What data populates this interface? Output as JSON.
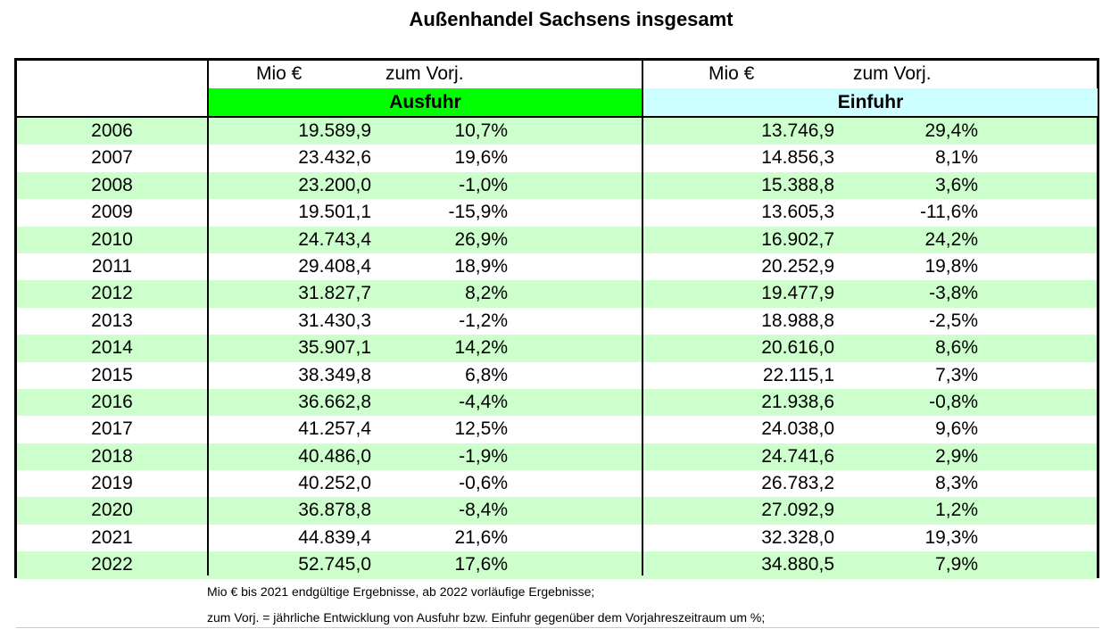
{
  "title": "Außenhandel Sachsens insgesamt",
  "header": {
    "aus_unit": "Mio €",
    "aus_change": "zum Vorj.",
    "ein_unit": "Mio €",
    "ein_change": "zum Vorj.",
    "aus_label": "Ausfuhr",
    "ein_label": "Einfuhr"
  },
  "colors": {
    "ausfuhr_band": "#00ff00",
    "einfuhr_band": "#ccffff",
    "row_shade": "#ccffcc"
  },
  "rows": [
    {
      "year": "2006",
      "aus_value": "19.589,9",
      "aus_change": "10,7%",
      "ein_value": "13.746,9",
      "ein_change": "29,4%"
    },
    {
      "year": "2007",
      "aus_value": "23.432,6",
      "aus_change": "19,6%",
      "ein_value": "14.856,3",
      "ein_change": "8,1%"
    },
    {
      "year": "2008",
      "aus_value": "23.200,0",
      "aus_change": "-1,0%",
      "ein_value": "15.388,8",
      "ein_change": "3,6%"
    },
    {
      "year": "2009",
      "aus_value": "19.501,1",
      "aus_change": "-15,9%",
      "ein_value": "13.605,3",
      "ein_change": "-11,6%"
    },
    {
      "year": "2010",
      "aus_value": "24.743,4",
      "aus_change": "26,9%",
      "ein_value": "16.902,7",
      "ein_change": "24,2%"
    },
    {
      "year": "2011",
      "aus_value": "29.408,4",
      "aus_change": "18,9%",
      "ein_value": "20.252,9",
      "ein_change": "19,8%"
    },
    {
      "year": "2012",
      "aus_value": "31.827,7",
      "aus_change": "8,2%",
      "ein_value": "19.477,9",
      "ein_change": "-3,8%"
    },
    {
      "year": "2013",
      "aus_value": "31.430,3",
      "aus_change": "-1,2%",
      "ein_value": "18.988,8",
      "ein_change": "-2,5%"
    },
    {
      "year": "2014",
      "aus_value": "35.907,1",
      "aus_change": "14,2%",
      "ein_value": "20.616,0",
      "ein_change": "8,6%"
    },
    {
      "year": "2015",
      "aus_value": "38.349,8",
      "aus_change": "6,8%",
      "ein_value": "22.115,1",
      "ein_change": "7,3%"
    },
    {
      "year": "2016",
      "aus_value": "36.662,8",
      "aus_change": "-4,4%",
      "ein_value": "21.938,6",
      "ein_change": "-0,8%"
    },
    {
      "year": "2017",
      "aus_value": "41.257,4",
      "aus_change": "12,5%",
      "ein_value": "24.038,0",
      "ein_change": "9,6%"
    },
    {
      "year": "2018",
      "aus_value": "40.486,0",
      "aus_change": "-1,9%",
      "ein_value": "24.741,6",
      "ein_change": "2,9%"
    },
    {
      "year": "2019",
      "aus_value": "40.252,0",
      "aus_change": "-0,6%",
      "ein_value": "26.783,2",
      "ein_change": "8,3%"
    },
    {
      "year": "2020",
      "aus_value": "36.878,8",
      "aus_change": "-8,4%",
      "ein_value": "27.092,9",
      "ein_change": "1,2%"
    },
    {
      "year": "2021",
      "aus_value": "44.839,4",
      "aus_change": "21,6%",
      "ein_value": "32.328,0",
      "ein_change": "19,3%"
    },
    {
      "year": "2022",
      "aus_value": "52.745,0",
      "aus_change": "17,6%",
      "ein_value": "34.880,5",
      "ein_change": "7,9%"
    }
  ],
  "notes": [
    "Mio € bis 2021 endgültige Ergebnisse, ab 2022 vorläufige Ergebnisse;",
    "zum Vorj. = jährliche Entwicklung von Ausfuhr bzw. Einfuhr gegenüber dem Vorjahreszeitraum um %;"
  ]
}
